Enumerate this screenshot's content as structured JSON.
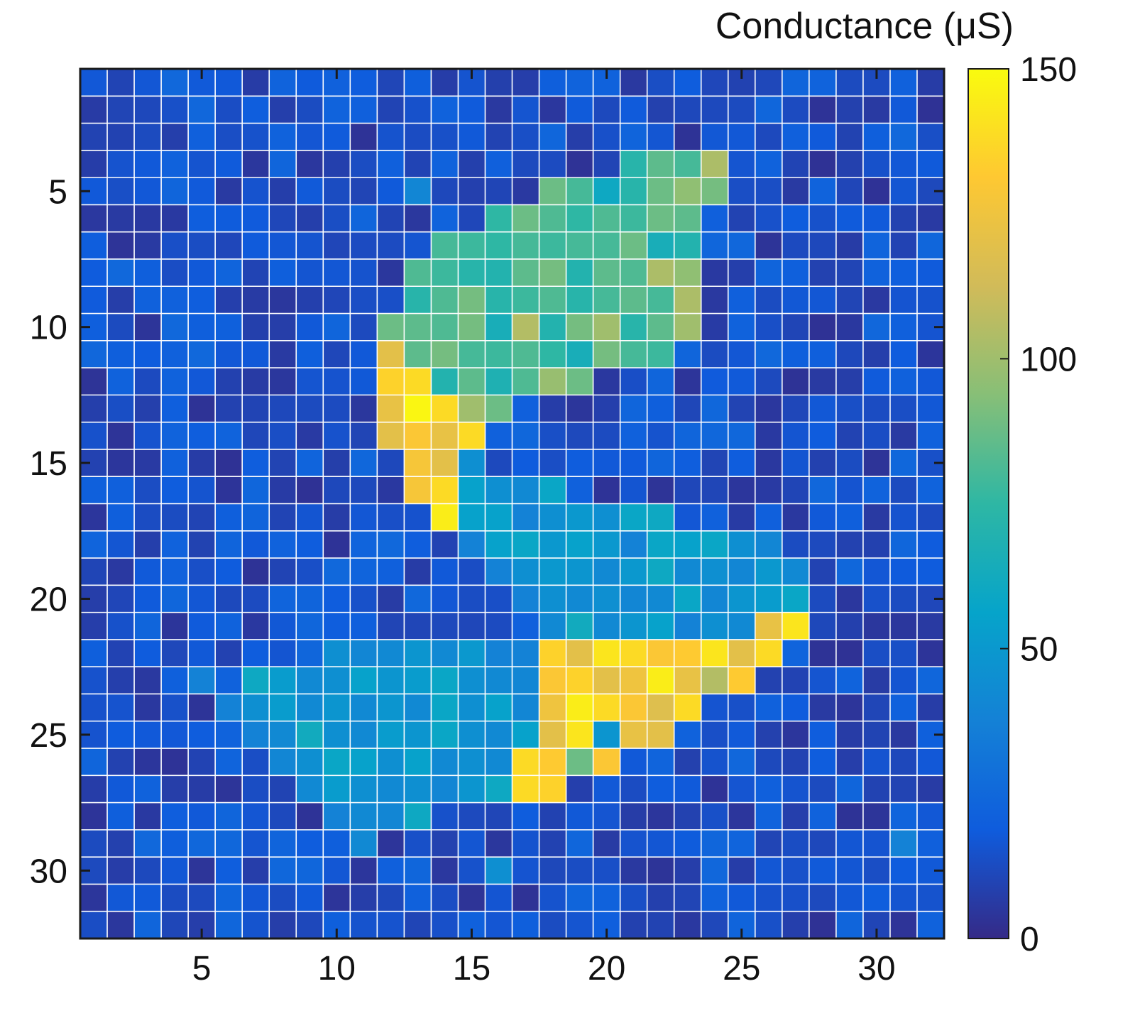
{
  "chart_data": {
    "type": "heatmap",
    "title": "",
    "xlabel": "",
    "ylabel": "",
    "rows": 32,
    "cols": 32,
    "xlim": [
      0.5,
      32.5
    ],
    "ylim": [
      0.5,
      32.5
    ],
    "x_ticks": [
      5,
      10,
      15,
      20,
      25,
      30
    ],
    "y_ticks": [
      5,
      10,
      15,
      20,
      25,
      30
    ],
    "grid": true,
    "colormap": "parula",
    "colorbar": {
      "title": "Conductance (μS)",
      "range": [
        0,
        150
      ],
      "ticks": [
        0,
        50,
        100,
        150
      ]
    },
    "background_range": [
      3,
      25
    ],
    "regions": [
      {
        "row": 4,
        "cols": [
          21,
          22,
          23,
          24
        ],
        "values": [
          72,
          85,
          80,
          103
        ]
      },
      {
        "row": 5,
        "cols": [
          13
        ],
        "values": [
          40
        ]
      },
      {
        "row": 5,
        "cols": [
          18,
          19,
          20,
          21,
          22,
          23,
          24
        ],
        "values": [
          88,
          80,
          60,
          72,
          88,
          96,
          90
        ]
      },
      {
        "row": 6,
        "cols": [
          16,
          17,
          18,
          19,
          20,
          21,
          22,
          23
        ],
        "values": [
          75,
          88,
          82,
          75,
          82,
          78,
          88,
          85
        ]
      },
      {
        "row": 7,
        "cols": [
          14,
          15,
          16,
          17,
          18,
          19,
          20,
          21,
          22,
          23
        ],
        "values": [
          80,
          78,
          75,
          80,
          78,
          80,
          80,
          88,
          65,
          70
        ]
      },
      {
        "row": 8,
        "cols": [
          13,
          14,
          15,
          16,
          17,
          18,
          19,
          20,
          21,
          22,
          23
        ],
        "values": [
          82,
          78,
          72,
          70,
          85,
          90,
          70,
          85,
          82,
          103,
          96
        ]
      },
      {
        "row": 9,
        "cols": [
          13,
          14,
          15,
          16,
          17,
          18,
          19,
          20,
          21,
          22,
          23
        ],
        "values": [
          72,
          82,
          90,
          72,
          78,
          82,
          72,
          80,
          85,
          80,
          103
        ]
      },
      {
        "row": 10,
        "cols": [
          12,
          13,
          14,
          15,
          16,
          17,
          18,
          19,
          20,
          21,
          22,
          23
        ],
        "values": [
          88,
          85,
          82,
          90,
          65,
          105,
          70,
          90,
          100,
          72,
          85,
          100
        ]
      },
      {
        "row": 11,
        "cols": [
          12,
          13,
          14,
          15,
          16,
          17,
          18,
          19,
          20,
          21,
          22
        ],
        "values": [
          120,
          85,
          90,
          80,
          78,
          82,
          75,
          65,
          90,
          80,
          78
        ]
      },
      {
        "row": 12,
        "cols": [
          12,
          13,
          14,
          15,
          16,
          17,
          18,
          19
        ],
        "values": [
          135,
          138,
          70,
          85,
          68,
          82,
          98,
          88
        ]
      },
      {
        "row": 13,
        "cols": [
          12,
          13,
          14,
          15,
          16
        ],
        "values": [
          122,
          148,
          138,
          100,
          88
        ]
      },
      {
        "row": 14,
        "cols": [
          12,
          13,
          14,
          15
        ],
        "values": [
          120,
          130,
          122,
          138
        ]
      },
      {
        "row": 15,
        "cols": [
          13,
          14,
          15
        ],
        "values": [
          128,
          120,
          45
        ]
      },
      {
        "row": 16,
        "cols": [
          13,
          14,
          15,
          16,
          17,
          18
        ],
        "values": [
          128,
          138,
          55,
          45,
          42,
          58
        ]
      },
      {
        "row": 17,
        "cols": [
          14,
          15,
          16,
          17,
          18,
          19,
          20,
          21,
          22
        ],
        "values": [
          145,
          55,
          55,
          38,
          45,
          50,
          45,
          58,
          60
        ]
      },
      {
        "row": 18,
        "cols": [
          15,
          16,
          17,
          18,
          19,
          20,
          21,
          22,
          23,
          24,
          25,
          26
        ],
        "values": [
          38,
          55,
          58,
          50,
          55,
          50,
          38,
          58,
          55,
          58,
          45,
          40
        ]
      },
      {
        "row": 19,
        "cols": [
          16,
          17,
          18,
          19,
          20,
          21,
          22,
          23,
          24,
          25,
          26,
          27
        ],
        "values": [
          38,
          45,
          50,
          48,
          42,
          50,
          60,
          42,
          45,
          40,
          50,
          42
        ]
      },
      {
        "row": 20,
        "cols": [
          17,
          18,
          19,
          20,
          21,
          22,
          23,
          24,
          25,
          26,
          27
        ],
        "values": [
          38,
          45,
          42,
          45,
          40,
          42,
          58,
          40,
          48,
          52,
          58
        ]
      },
      {
        "row": 21,
        "cols": [
          18,
          19,
          20,
          21,
          22,
          23,
          24,
          25,
          26,
          27
        ],
        "values": [
          42,
          62,
          42,
          48,
          55,
          38,
          45,
          42,
          122,
          142
        ]
      },
      {
        "row": 22,
        "cols": [
          10,
          11,
          12,
          13,
          14,
          15,
          16,
          17,
          18,
          19,
          20,
          21,
          22,
          23,
          24,
          25,
          26
        ],
        "values": [
          45,
          40,
          42,
          48,
          42,
          50,
          38,
          38,
          135,
          120,
          142,
          138,
          130,
          132,
          142,
          120,
          138
        ]
      },
      {
        "row": 23,
        "cols": [
          5,
          7,
          8,
          9,
          10,
          11,
          12,
          13,
          14,
          15,
          16,
          17,
          18,
          19,
          20,
          21,
          22,
          23,
          24,
          25
        ],
        "values": [
          38,
          60,
          52,
          42,
          45,
          55,
          48,
          52,
          58,
          45,
          42,
          40,
          130,
          135,
          120,
          125,
          145,
          122,
          105,
          132
        ]
      },
      {
        "row": 24,
        "cols": [
          6,
          7,
          8,
          9,
          10,
          11,
          12,
          13,
          14,
          15,
          16,
          17,
          18,
          19,
          20,
          21,
          22,
          23
        ],
        "values": [
          38,
          45,
          52,
          42,
          48,
          42,
          48,
          42,
          58,
          45,
          55,
          40,
          125,
          145,
          138,
          130,
          118,
          138
        ]
      },
      {
        "row": 25,
        "cols": [
          7,
          8,
          9,
          10,
          11,
          12,
          13,
          14,
          15,
          16,
          17,
          18,
          19,
          20,
          21,
          22
        ],
        "values": [
          38,
          42,
          62,
          45,
          42,
          52,
          48,
          58,
          45,
          42,
          55,
          120,
          142,
          48,
          122,
          120
        ]
      },
      {
        "row": 26,
        "cols": [
          8,
          9,
          10,
          11,
          12,
          13,
          14,
          15,
          16,
          17,
          18,
          19,
          20
        ],
        "values": [
          40,
          45,
          58,
          55,
          45,
          55,
          42,
          45,
          42,
          138,
          132,
          88,
          130
        ]
      },
      {
        "row": 27,
        "cols": [
          9,
          10,
          11,
          12,
          13,
          14,
          15,
          16,
          17,
          18
        ],
        "values": [
          42,
          52,
          45,
          42,
          45,
          40,
          48,
          60,
          138,
          135
        ]
      },
      {
        "row": 28,
        "cols": [
          10,
          11,
          12,
          13
        ],
        "values": [
          38,
          42,
          40,
          60
        ]
      },
      {
        "row": 29,
        "cols": [
          11,
          31
        ],
        "values": [
          42,
          38
        ]
      },
      {
        "row": 30,
        "cols": [
          16
        ],
        "values": [
          45
        ]
      }
    ]
  }
}
